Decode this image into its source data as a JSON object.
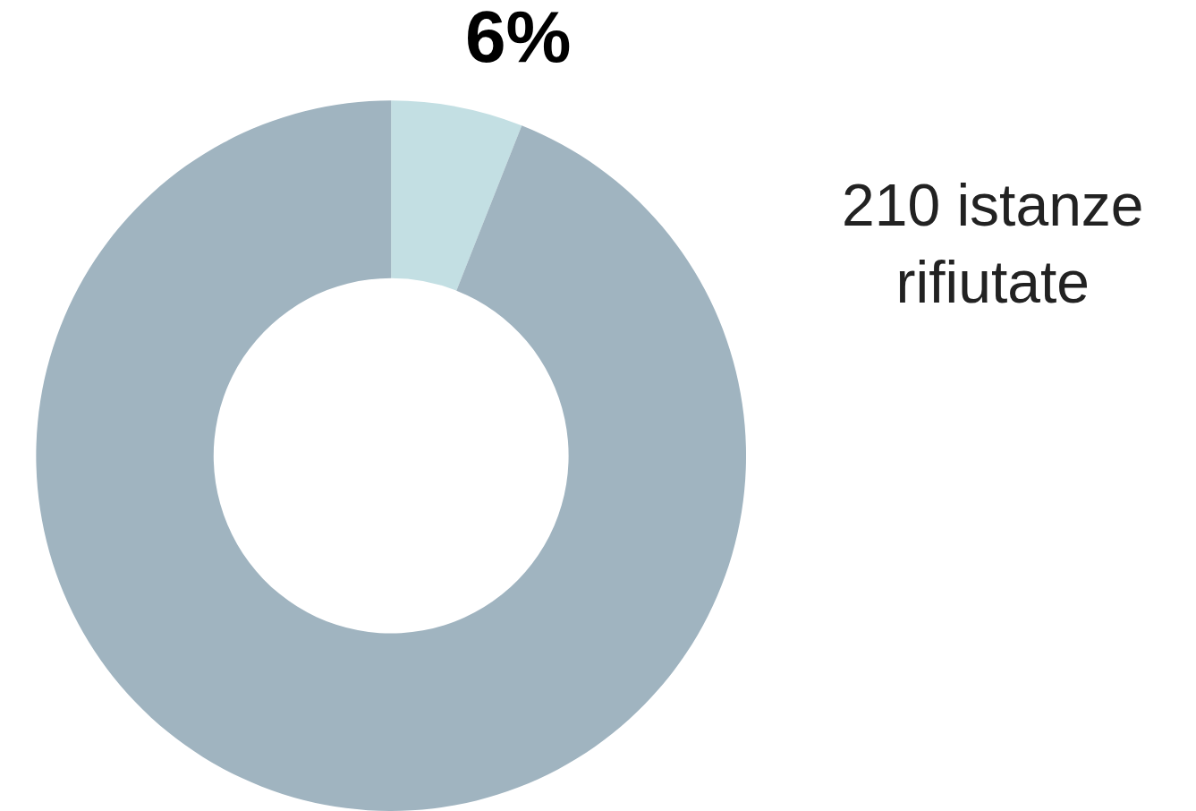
{
  "chart_data": {
    "type": "donut",
    "categories": [
      null,
      null
    ],
    "values": [
      6,
      94
    ],
    "colors": [
      "#c3dfe3",
      "#a0b4c0"
    ],
    "value_labels": [
      "6%",
      null
    ],
    "annotations": [
      "210 istanze\nrifiutate"
    ],
    "legend": false
  }
}
